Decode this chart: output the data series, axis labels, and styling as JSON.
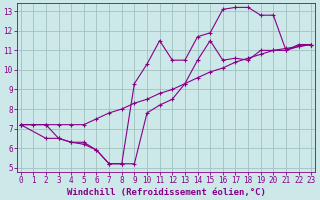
{
  "bg_color": "#cce8e8",
  "line_color": "#880088",
  "xlim": [
    -0.3,
    23.3
  ],
  "ylim": [
    4.8,
    13.4
  ],
  "xticks": [
    0,
    1,
    2,
    3,
    4,
    5,
    6,
    7,
    8,
    9,
    10,
    11,
    12,
    13,
    14,
    15,
    16,
    17,
    18,
    19,
    20,
    21,
    22,
    23
  ],
  "yticks": [
    5,
    6,
    7,
    8,
    9,
    10,
    11,
    12,
    13
  ],
  "line1_x": [
    0,
    1,
    2,
    3,
    4,
    5,
    6,
    7,
    8,
    9,
    10,
    11,
    12,
    13,
    14,
    15,
    16,
    17,
    18,
    19,
    20,
    21,
    22,
    23
  ],
  "line1_y": [
    7.2,
    7.2,
    7.2,
    7.2,
    7.2,
    7.2,
    7.5,
    7.8,
    8.0,
    8.3,
    8.5,
    8.8,
    9.0,
    9.3,
    9.6,
    9.9,
    10.1,
    10.4,
    10.6,
    10.8,
    11.0,
    11.1,
    11.2,
    11.3
  ],
  "line2_x": [
    0,
    2,
    3,
    4,
    5,
    6,
    7,
    8,
    9,
    10,
    11,
    12,
    13,
    14,
    15,
    16,
    17,
    18,
    19,
    20,
    21,
    22,
    23
  ],
  "line2_y": [
    7.2,
    7.2,
    6.5,
    6.3,
    6.3,
    5.9,
    5.2,
    5.2,
    5.2,
    7.8,
    8.2,
    8.5,
    9.3,
    10.5,
    11.5,
    10.5,
    10.6,
    10.5,
    11.0,
    11.0,
    11.0,
    11.2,
    11.3
  ],
  "line3_x": [
    0,
    2,
    3,
    4,
    5,
    6,
    7,
    8,
    9,
    10,
    11,
    12,
    13,
    14,
    15,
    16,
    17,
    18,
    19,
    20,
    21,
    22,
    23
  ],
  "line3_y": [
    7.2,
    6.5,
    6.5,
    6.3,
    6.2,
    5.9,
    5.2,
    5.2,
    9.3,
    10.3,
    11.5,
    10.5,
    10.5,
    11.7,
    11.9,
    13.1,
    13.2,
    13.2,
    12.8,
    12.8,
    11.0,
    11.3,
    11.3
  ],
  "xlabel": "Windchill (Refroidissement éolien,°C)",
  "marker": "+",
  "markersize": 3.5,
  "linewidth": 0.8,
  "grid_color": "#99bbbb",
  "xlabel_fontsize": 6.5,
  "tick_fontsize": 5.5
}
